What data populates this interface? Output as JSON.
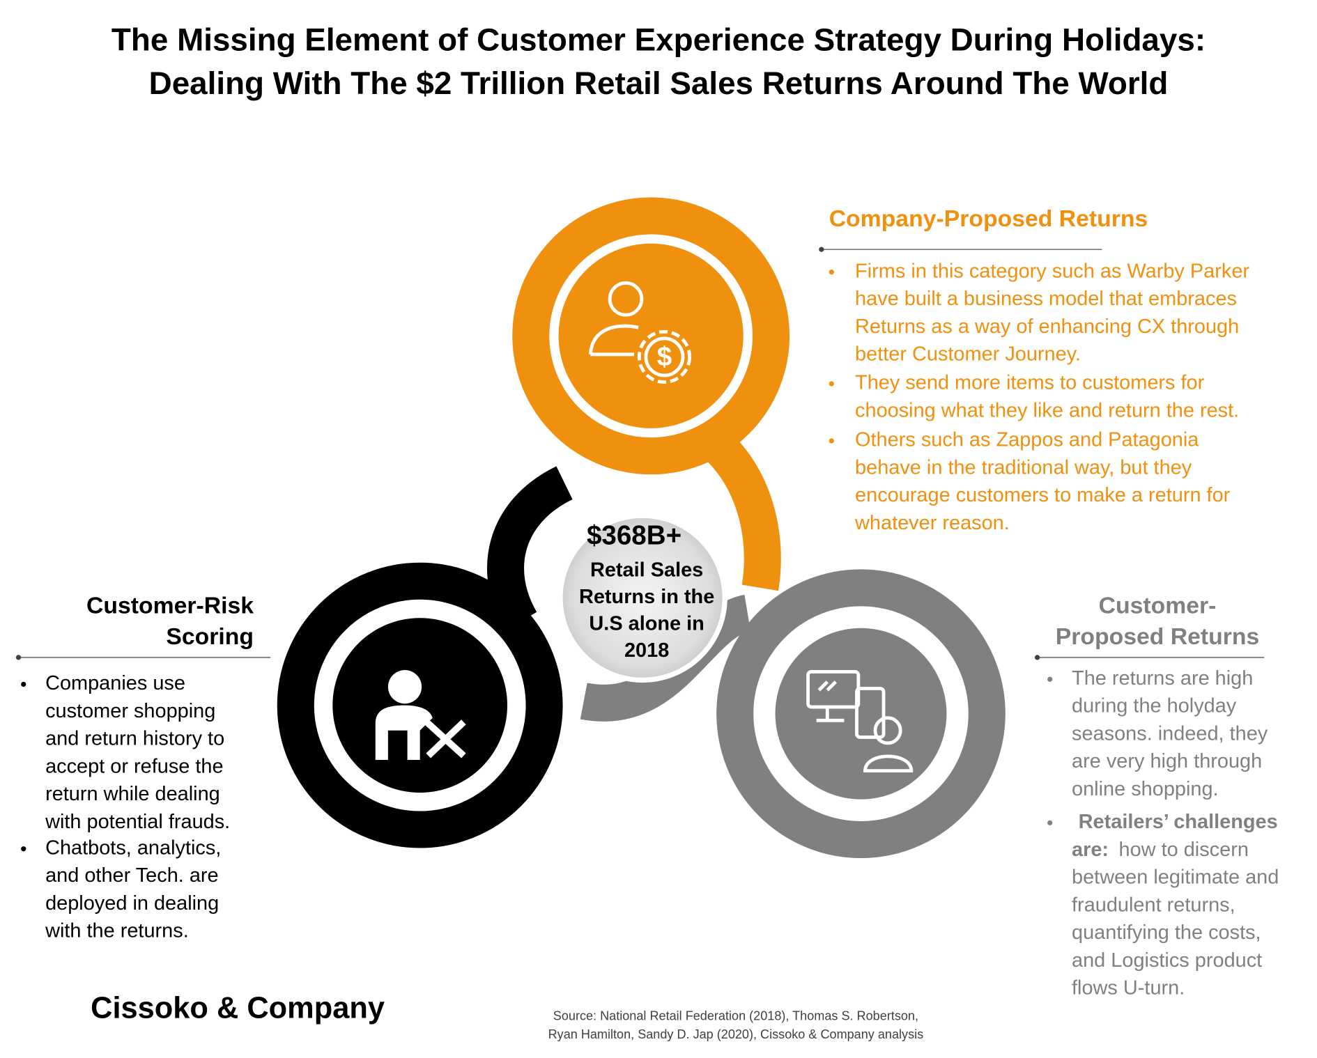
{
  "title": [
    "The Missing Element of Customer Experience  Strategy During Holidays:",
    "Dealing With The $2 Trillion Retail Sales Returns  Around The World"
  ],
  "center": {
    "amount": "$368B+",
    "lines": [
      "Retail Sales",
      "Returns  in the",
      "U.S  alone in",
      "2018"
    ]
  },
  "sections": {
    "company": {
      "heading": [
        "Company-Proposed Returns"
      ],
      "bullets": [
        [
          "Firms in this category such as Warby Parker",
          "have built a business model that embraces",
          "Returns as a way of enhancing CX through",
          "better Customer Journey."
        ],
        [
          "They send more items to customers for",
          "choosing what they like and return the rest."
        ],
        [
          "Others such as Zappos and Patagonia",
          "behave in the traditional way, but they",
          "encourage customers to make a return for",
          "whatever reason."
        ]
      ]
    },
    "risk": {
      "heading": [
        "Customer-Risk",
        "Scoring"
      ],
      "bullets": [
        [
          "Companies use",
          "customer shopping",
          "and return history to",
          "accept or refuse the",
          "return while dealing",
          "with potential frauds."
        ],
        [
          "Chatbots, analytics,",
          "and other Tech. are",
          "deployed in dealing",
          "with the returns."
        ]
      ]
    },
    "customer": {
      "heading": [
        "Customer-",
        "Proposed Returns"
      ],
      "bullets": [
        [
          "The returns are high",
          "during the holyday",
          "seasons. indeed, they",
          "are very high through",
          "online shopping."
        ],
        [
          "Retailers’ challenges",
          "are:",
          "how to discern",
          "between legitimate and",
          "fraudulent returns,",
          "quantifying the costs,",
          "and Logistics product",
          "flows U-turn."
        ]
      ]
    }
  },
  "brand": "Cissoko & Company",
  "source": [
    "Source: National Retail Federation (2018), Thomas  S. Robertson,",
    "Ryan Hamilton,  Sandy D. Jap (2020), Cissoko & Company  analysis"
  ]
}
